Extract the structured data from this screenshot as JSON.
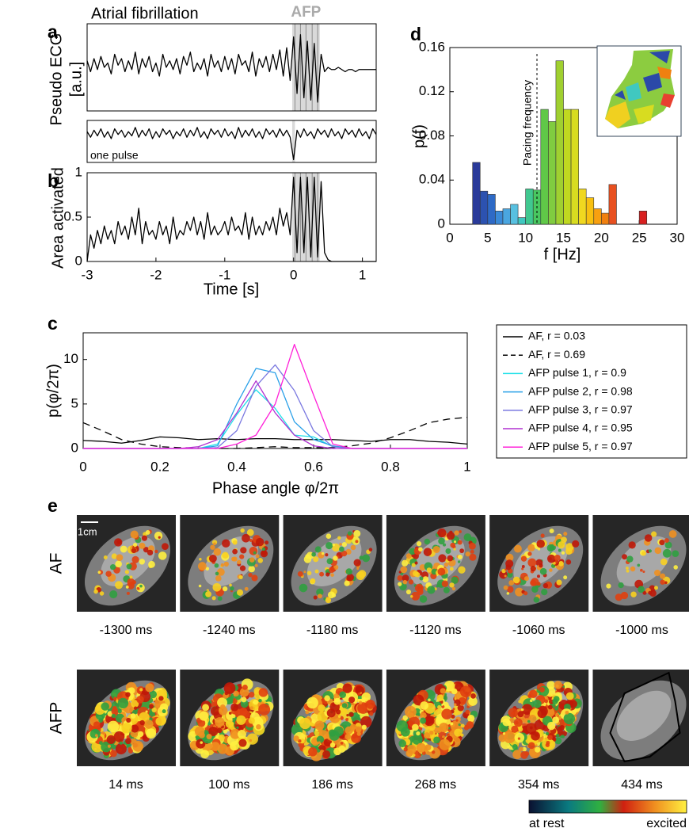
{
  "chart_data": [
    {
      "type": "line",
      "panel": "a",
      "title": "Atrial fibrillation",
      "annotation": "AFP",
      "ylabel": [
        "Pseudo ECG",
        "[a.u.]"
      ],
      "x": [
        -3,
        -2.95,
        -2.9,
        -2.85,
        -2.8,
        -2.75,
        -2.7,
        -2.65,
        -2.6,
        -2.55,
        -2.5,
        -2.45,
        -2.4,
        -2.35,
        -2.3,
        -2.25,
        -2.2,
        -2.15,
        -2.1,
        -2.05,
        -2,
        -1.95,
        -1.9,
        -1.85,
        -1.8,
        -1.75,
        -1.7,
        -1.65,
        -1.6,
        -1.55,
        -1.5,
        -1.45,
        -1.4,
        -1.35,
        -1.3,
        -1.25,
        -1.2,
        -1.15,
        -1.1,
        -1.05,
        -1,
        -0.95,
        -0.9,
        -0.85,
        -0.8,
        -0.75,
        -0.7,
        -0.65,
        -0.6,
        -0.55,
        -0.5,
        -0.45,
        -0.4,
        -0.35,
        -0.3,
        -0.25,
        -0.2,
        -0.15,
        -0.1,
        -0.05,
        0,
        0.05,
        0.1,
        0.15,
        0.2,
        0.25,
        0.3,
        0.35,
        0.4,
        0.45,
        0.5,
        0.55,
        0.6,
        0.65,
        0.7,
        0.75,
        0.8,
        0.85,
        0.9,
        0.95,
        1,
        1.05,
        1.1,
        1.15,
        1.2
      ],
      "values": [
        0.15,
        -0.1,
        0.2,
        -0.05,
        0.25,
        0.0,
        0.1,
        -0.15,
        0.3,
        0.05,
        0.2,
        -0.1,
        0.15,
        -0.05,
        0.35,
        -0.15,
        0.2,
        0.0,
        0.25,
        -0.1,
        0.1,
        -0.2,
        0.3,
        0.0,
        0.15,
        -0.05,
        0.2,
        -0.15,
        0.25,
        0.05,
        0.35,
        -0.1,
        0.1,
        -0.05,
        0.2,
        -0.2,
        0.3,
        0.0,
        0.15,
        -0.1,
        0.25,
        -0.05,
        0.2,
        -0.15,
        0.3,
        0.05,
        0.15,
        -0.1,
        0.35,
        -0.2,
        0.2,
        0.0,
        0.25,
        -0.1,
        0.3,
        -0.05,
        0.4,
        -0.2,
        0.45,
        -0.3,
        0.7,
        -0.6,
        0.75,
        -0.7,
        0.6,
        -0.75,
        0.55,
        -0.8,
        0.3,
        -0.1,
        0.0,
        -0.05,
        -0.05,
        0.0,
        -0.05,
        -0.1,
        -0.05,
        -0.05,
        -0.1,
        -0.05,
        -0.05,
        -0.05,
        -0.05,
        -0.05,
        -0.05
      ],
      "color": "#000000",
      "xlim": [
        -3,
        1.2
      ],
      "ylim": [
        -1,
        1
      ],
      "highlight": [
        -0.02,
        0.38
      ],
      "pulses": [
        0.02,
        0.1,
        0.18,
        0.27,
        0.35
      ]
    },
    {
      "type": "line",
      "annotation": "one pulse",
      "x": [
        -3,
        -2.95,
        -2.9,
        -2.85,
        -2.8,
        -2.75,
        -2.7,
        -2.65,
        -2.6,
        -2.55,
        -2.5,
        -2.45,
        -2.4,
        -2.35,
        -2.3,
        -2.25,
        -2.2,
        -2.15,
        -2.1,
        -2.05,
        -2,
        -1.95,
        -1.9,
        -1.85,
        -1.8,
        -1.75,
        -1.7,
        -1.65,
        -1.6,
        -1.55,
        -1.5,
        -1.45,
        -1.4,
        -1.35,
        -1.3,
        -1.25,
        -1.2,
        -1.15,
        -1.1,
        -1.05,
        -1,
        -0.95,
        -0.9,
        -0.85,
        -0.8,
        -0.75,
        -0.7,
        -0.65,
        -0.6,
        -0.55,
        -0.5,
        -0.45,
        -0.4,
        -0.35,
        -0.3,
        -0.25,
        -0.2,
        -0.15,
        -0.1,
        -0.05,
        0,
        0.05,
        0.1,
        0.15,
        0.2,
        0.25,
        0.3,
        0.35,
        0.4,
        0.45,
        0.5,
        0.55,
        0.6,
        0.65,
        0.7,
        0.75,
        0.8,
        0.85,
        0.9,
        0.95,
        1,
        1.05,
        1.1,
        1.15,
        1.2
      ],
      "values": [
        0.1,
        -0.1,
        0.15,
        -0.05,
        0.2,
        -0.1,
        0.1,
        -0.15,
        0.2,
        0.0,
        0.15,
        -0.1,
        0.1,
        -0.05,
        0.25,
        -0.1,
        0.15,
        -0.05,
        0.2,
        -0.15,
        0.1,
        -0.1,
        0.2,
        0.0,
        0.15,
        -0.15,
        0.1,
        -0.05,
        0.2,
        -0.1,
        0.15,
        -0.05,
        0.25,
        -0.1,
        0.1,
        -0.15,
        0.2,
        0.0,
        0.15,
        -0.1,
        0.2,
        -0.05,
        0.1,
        -0.15,
        0.25,
        -0.1,
        0.15,
        -0.05,
        0.2,
        -0.1,
        0.1,
        -0.15,
        0.2,
        0.0,
        0.15,
        -0.1,
        0.2,
        -0.05,
        0.15,
        -0.1,
        -0.9,
        0.15,
        -0.1,
        0.2,
        -0.05,
        0.1,
        -0.15,
        0.2,
        0.0,
        0.15,
        -0.1,
        0.2,
        -0.05,
        0.1,
        -0.15,
        0.2,
        0.0,
        0.15,
        -0.1,
        0.2,
        -0.05,
        0.1,
        -0.15,
        0.2,
        0.0
      ],
      "color": "#000000",
      "xlim": [
        -3,
        1.2
      ],
      "ylim": [
        -1,
        0.5
      ],
      "highlight": [
        -0.02,
        0.02
      ]
    },
    {
      "type": "line",
      "panel": "b",
      "ylabel": "Area activated",
      "xlabel": "Time [s]",
      "x": [
        -3,
        -2.95,
        -2.9,
        -2.85,
        -2.8,
        -2.75,
        -2.7,
        -2.65,
        -2.6,
        -2.55,
        -2.5,
        -2.45,
        -2.4,
        -2.35,
        -2.3,
        -2.25,
        -2.2,
        -2.15,
        -2.1,
        -2.05,
        -2,
        -1.95,
        -1.9,
        -1.85,
        -1.8,
        -1.75,
        -1.7,
        -1.65,
        -1.6,
        -1.55,
        -1.5,
        -1.45,
        -1.4,
        -1.35,
        -1.3,
        -1.25,
        -1.2,
        -1.15,
        -1.1,
        -1.05,
        -1,
        -0.95,
        -0.9,
        -0.85,
        -0.8,
        -0.75,
        -0.7,
        -0.65,
        -0.6,
        -0.55,
        -0.5,
        -0.45,
        -0.4,
        -0.35,
        -0.3,
        -0.25,
        -0.2,
        -0.15,
        -0.1,
        -0.05,
        0,
        0.05,
        0.1,
        0.15,
        0.2,
        0.25,
        0.3,
        0.35,
        0.4,
        0.45,
        0.5,
        0.55,
        0.6,
        0.65,
        0.7,
        0.75,
        0.8,
        0.85,
        0.9,
        0.95,
        1,
        1.05,
        1.1,
        1.15,
        1.2
      ],
      "values": [
        0,
        0.3,
        0.15,
        0.35,
        0.2,
        0.4,
        0.25,
        0.35,
        0.2,
        0.45,
        0.3,
        0.4,
        0.25,
        0.5,
        0.3,
        0.6,
        0.2,
        0.45,
        0.3,
        0.35,
        0.25,
        0.45,
        0.3,
        0.4,
        0.2,
        0.5,
        0.25,
        0.35,
        0.3,
        0.45,
        0.35,
        0.5,
        0.3,
        0.45,
        0.25,
        0.55,
        0.3,
        0.4,
        0.3,
        0.35,
        0.45,
        0.3,
        0.5,
        0.35,
        0.4,
        0.3,
        0.55,
        0.25,
        0.5,
        0.3,
        0.4,
        0.3,
        0.45,
        0.35,
        0.5,
        0.3,
        0.6,
        0.4,
        0.55,
        0.3,
        0.95,
        0.1,
        0.95,
        0.1,
        0.95,
        0.05,
        0.95,
        0.05,
        0.9,
        0.1,
        0.02,
        0,
        0,
        0,
        0,
        0,
        0,
        0,
        0,
        0,
        0,
        0,
        0,
        0,
        0
      ],
      "color": "#000000",
      "xlim": [
        -3,
        1.2
      ],
      "ylim": [
        0,
        1
      ],
      "xticks": [
        -3,
        -2,
        -1,
        0,
        1
      ],
      "yticks": [
        0,
        0.5,
        1
      ],
      "highlight": [
        -0.02,
        0.38
      ],
      "pulses": [
        0.02,
        0.1,
        0.18,
        0.27,
        0.35
      ]
    },
    {
      "type": "line",
      "panel": "c",
      "ylabel": "p(φ/2π)",
      "xlabel": "Phase angle φ/2π",
      "x": [
        0,
        0.05,
        0.1,
        0.15,
        0.2,
        0.25,
        0.3,
        0.35,
        0.4,
        0.45,
        0.5,
        0.55,
        0.6,
        0.65,
        0.7,
        0.75,
        0.8,
        0.85,
        0.9,
        0.95,
        1
      ],
      "series": [
        {
          "name": "AF, r = 0.03",
          "color": "#000000",
          "values": [
            0.9,
            0.8,
            0.6,
            0.9,
            1.3,
            1.2,
            1.0,
            1.1,
            1.0,
            1.1,
            1.1,
            1.0,
            1.0,
            1.0,
            0.9,
            0.8,
            1.0,
            1.0,
            0.8,
            0.7,
            0.5
          ]
        },
        {
          "name": "AF, r = 0.69",
          "color": "#000000",
          "dashed": true,
          "values": [
            2.9,
            2.0,
            1.0,
            0.5,
            0.2,
            0.1,
            0.05,
            0,
            0,
            0.1,
            0.2,
            0.1,
            0.1,
            0.1,
            0.3,
            0.6,
            1.2,
            2.0,
            2.9,
            3.3,
            3.5
          ]
        },
        {
          "name": "AFP pulse 1, r = 0.9",
          "color": "#1fe0e8",
          "values": [
            0,
            0,
            0,
            0,
            0,
            0,
            0,
            0.5,
            3.8,
            6.6,
            4.5,
            1.5,
            1.3,
            0.2,
            0,
            0,
            0,
            0,
            0,
            0,
            0
          ]
        },
        {
          "name": "AFP pulse 2, r = 0.98",
          "color": "#2aa0e8",
          "values": [
            0,
            0,
            0,
            0,
            0,
            0,
            0,
            0.3,
            5.0,
            9.0,
            8.5,
            3.0,
            1.0,
            0.3,
            0,
            0,
            0,
            0,
            0,
            0,
            0
          ]
        },
        {
          "name": "AFP pulse 3, r = 0.97",
          "color": "#7a78e0",
          "values": [
            0,
            0,
            0,
            0,
            0,
            0,
            0,
            0.1,
            2.0,
            7.0,
            9.4,
            6.5,
            2.0,
            0.2,
            0,
            0,
            0,
            0,
            0,
            0,
            0
          ]
        },
        {
          "name": "AFP pulse 4, r = 0.95",
          "color": "#b030d0",
          "values": [
            0,
            0,
            0,
            0,
            0,
            0,
            0.2,
            1.0,
            4.0,
            7.6,
            4.0,
            1.5,
            0.3,
            0,
            0,
            0,
            0,
            0,
            0,
            0,
            0
          ]
        },
        {
          "name": "AFP pulse 5, r = 0.97",
          "color": "#ff20d8",
          "values": [
            0,
            0,
            0,
            0,
            0,
            0,
            0,
            0,
            0.5,
            1.5,
            5.0,
            11.7,
            6.0,
            0.5,
            0,
            0,
            0,
            0,
            0,
            0,
            0
          ]
        }
      ],
      "xlim": [
        0,
        1
      ],
      "ylim": [
        0,
        13
      ],
      "xticks": [
        0,
        0.2,
        0.4,
        0.6,
        0.8,
        1
      ],
      "yticks": [
        0,
        5,
        10
      ]
    },
    {
      "type": "histogram",
      "panel": "d",
      "ylabel": "p(f)",
      "xlabel": "f [Hz]",
      "bins": [
        3,
        4,
        5,
        6,
        7,
        8,
        9,
        10,
        11,
        12,
        13,
        14,
        15,
        16,
        17,
        18,
        19,
        20,
        21,
        22,
        23,
        24,
        25,
        26
      ],
      "values": [
        0.056,
        0.03,
        0.027,
        0.012,
        0.014,
        0.018,
        0.006,
        0.032,
        0.031,
        0.104,
        0.093,
        0.148,
        0.104,
        0.104,
        0.032,
        0.024,
        0.014,
        0.01,
        0.036,
        0,
        0,
        0,
        0.012
      ],
      "colors": [
        "#2a3a9a",
        "#2c52b0",
        "#2e6ac6",
        "#3a8ad8",
        "#4aa6e0",
        "#58c0e0",
        "#40c8c0",
        "#40c890",
        "#48c860",
        "#60c848",
        "#80cc40",
        "#a0d030",
        "#c0d820",
        "#d8dc20",
        "#f0d820",
        "#f8c010",
        "#f8a010",
        "#f08010",
        "#e85020",
        "#e03020",
        "#dc2820",
        "#da2420",
        "#d82020"
      ],
      "xlim": [
        0,
        30
      ],
      "ylim": [
        0,
        0.16
      ],
      "xticks": [
        0,
        5,
        10,
        15,
        20,
        25,
        30
      ],
      "yticks": [
        0,
        0.04,
        0.08,
        0.12,
        0.16
      ],
      "annotations": [
        {
          "text": "Pacing frequency",
          "x": 11.5
        }
      ]
    }
  ],
  "panel_e": {
    "label": "e",
    "scale_bar": "1cm",
    "rows": [
      {
        "label": "AF",
        "times": [
          "-1300 ms",
          "-1240 ms",
          "-1180 ms",
          "-1120 ms",
          "-1060 ms",
          "-1000 ms"
        ]
      },
      {
        "label": "AFP",
        "times": [
          "14 ms",
          "100 ms",
          "186 ms",
          "268 ms",
          "354 ms",
          "434 ms"
        ]
      }
    ],
    "colorbar": [
      "at rest",
      "excited"
    ]
  }
}
